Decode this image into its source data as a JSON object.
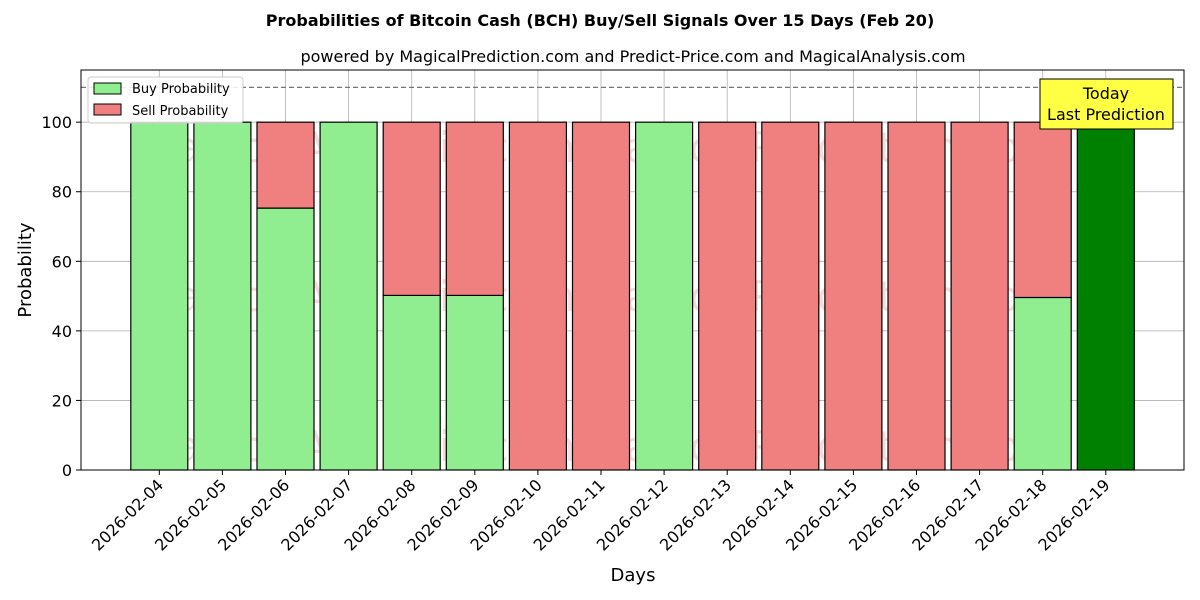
{
  "chart_data": {
    "type": "bar",
    "stacked": true,
    "title": "Probabilities of Bitcoin Cash (BCH) Buy/Sell Signals Over 15 Days (Feb 20)",
    "subtitle": "powered by MagicalPrediction.com and Predict-Price.com and MagicalAnalysis.com",
    "xlabel": "Days",
    "ylabel": "Probability",
    "ylim": [
      0,
      115
    ],
    "yticks": [
      0,
      20,
      40,
      60,
      80,
      100
    ],
    "grid": true,
    "legend_position": "top-left",
    "reference_line": 110,
    "categories": [
      "2026-02-04",
      "2026-02-05",
      "2026-02-06",
      "2026-02-07",
      "2026-02-08",
      "2026-02-09",
      "2026-02-10",
      "2026-02-11",
      "2026-02-12",
      "2026-02-13",
      "2026-02-14",
      "2026-02-15",
      "2026-02-16",
      "2026-02-17",
      "2026-02-18",
      "2026-02-19"
    ],
    "series": [
      {
        "name": "Buy Probability",
        "color": "#90ee90",
        "values": [
          100,
          100,
          75.3,
          100,
          50.2,
          50.2,
          0,
          0,
          100,
          0,
          0,
          0,
          0,
          0,
          49.6,
          100
        ]
      },
      {
        "name": "Sell Probability",
        "color": "#f08080",
        "values": [
          0,
          0,
          24.7,
          0,
          49.8,
          49.8,
          100,
          100,
          0,
          100,
          100,
          100,
          100,
          100,
          50.4,
          0
        ]
      }
    ],
    "highlight": {
      "index": 15,
      "color": "#008000"
    },
    "annotation": {
      "lines": [
        "Today",
        "Last Prediction"
      ],
      "background": "#ffff44"
    },
    "watermark": "MagicalAnalysis.com     MagicalPrediction.com"
  }
}
